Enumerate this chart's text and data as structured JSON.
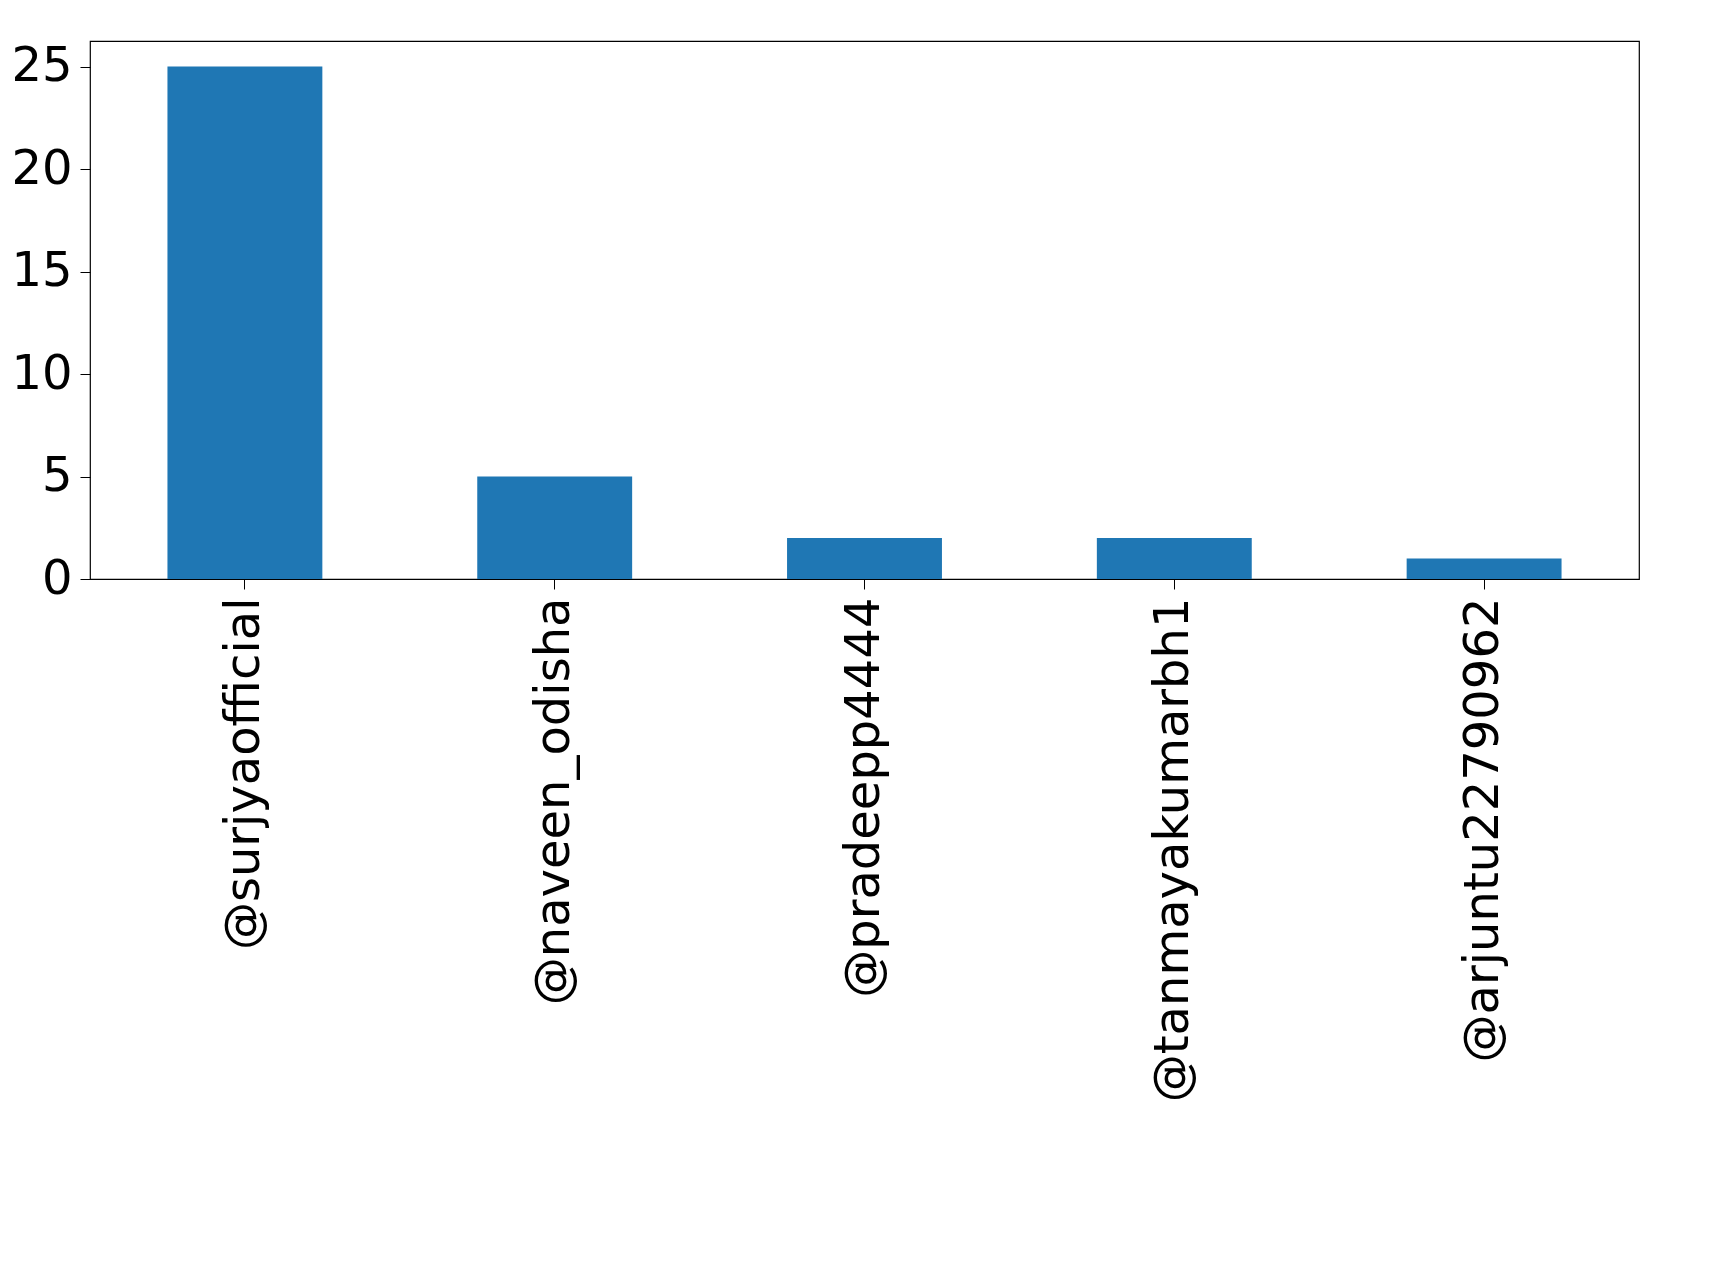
{
  "chart_data": {
    "type": "bar",
    "categories": [
      "@surjyaofficial",
      "@naveen_odisha",
      "@pradeepp4444",
      "@tanmayakumarbh1",
      "@arjuntu22790962"
    ],
    "values": [
      25,
      5,
      2,
      2,
      1
    ],
    "color": "#1f77b4",
    "ylim": [
      0,
      26.25
    ],
    "yticks": [
      0,
      5,
      10,
      15,
      20,
      25
    ],
    "grid": false
  }
}
